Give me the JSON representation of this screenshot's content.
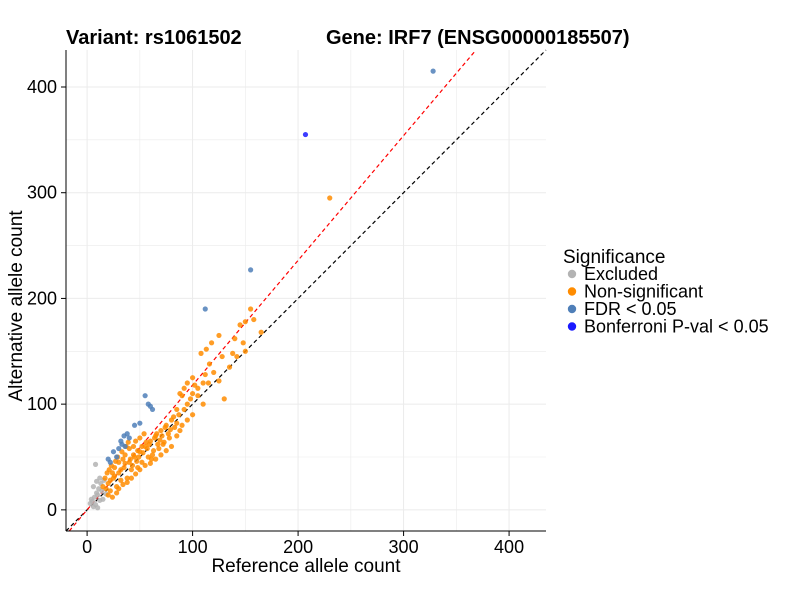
{
  "colors": {
    "excluded": "#b3b3b3",
    "non_significant": "#ff8c00",
    "fdr": "#4f7fb8",
    "bonferroni": "#1a1aff",
    "identity_line": "#000000",
    "fit_line": "#ff0000",
    "grid": "#ebebeb"
  },
  "chart_data": {
    "type": "scatter",
    "title_left": "Variant: rs1061502",
    "title_right": "Gene: IRF7 (ENSG00000185507)",
    "xlabel": "Reference allele count",
    "ylabel": "Alternative allele count",
    "xlim": [
      -20,
      435
    ],
    "ylim": [
      -20,
      435
    ],
    "x_ticks": [
      0,
      100,
      200,
      300,
      400
    ],
    "y_ticks": [
      0,
      100,
      200,
      300,
      400
    ],
    "legend": {
      "title": "Significance",
      "position": "right",
      "entries": [
        {
          "label": "Excluded",
          "key": "excluded"
        },
        {
          "label": "Non-significant",
          "key": "non_significant"
        },
        {
          "label": "FDR < 0.05",
          "key": "fdr"
        },
        {
          "label": "Bonferroni P-val < 0.05",
          "key": "bonferroni"
        }
      ]
    },
    "reference_lines": [
      {
        "name": "identity",
        "slope": 1.0,
        "intercept": 0,
        "color_key": "identity_line",
        "style": "dashed"
      },
      {
        "name": "fit",
        "slope": 1.18,
        "intercept": 0,
        "color_key": "fit_line",
        "style": "dashed"
      }
    ],
    "series": [
      {
        "name": "Excluded",
        "color_key": "excluded",
        "points": [
          [
            5,
            8
          ],
          [
            7,
            12
          ],
          [
            8,
            5
          ],
          [
            10,
            14
          ],
          [
            12,
            9
          ],
          [
            3,
            6
          ],
          [
            6,
            3
          ],
          [
            9,
            16
          ],
          [
            11,
            20
          ],
          [
            4,
            10
          ],
          [
            14,
            18
          ],
          [
            15,
            10
          ],
          [
            10,
            2
          ],
          [
            8,
            43
          ],
          [
            6,
            22
          ],
          [
            13,
            25
          ],
          [
            16,
            28
          ],
          [
            12,
            30
          ],
          [
            9,
            27
          ],
          [
            18,
            15
          ]
        ]
      },
      {
        "name": "Non-significant",
        "color_key": "non_significant",
        "points": [
          [
            20,
            25
          ],
          [
            22,
            18
          ],
          [
            25,
            30
          ],
          [
            28,
            22
          ],
          [
            30,
            35
          ],
          [
            32,
            28
          ],
          [
            35,
            40
          ],
          [
            38,
            30
          ],
          [
            40,
            45
          ],
          [
            42,
            38
          ],
          [
            45,
            50
          ],
          [
            48,
            40
          ],
          [
            50,
            55
          ],
          [
            52,
            45
          ],
          [
            55,
            60
          ],
          [
            58,
            50
          ],
          [
            60,
            65
          ],
          [
            62,
            52
          ],
          [
            65,
            70
          ],
          [
            68,
            58
          ],
          [
            70,
            75
          ],
          [
            72,
            62
          ],
          [
            75,
            80
          ],
          [
            78,
            68
          ],
          [
            80,
            85
          ],
          [
            24,
            35
          ],
          [
            26,
            40
          ],
          [
            30,
            45
          ],
          [
            34,
            48
          ],
          [
            36,
            52
          ],
          [
            40,
            58
          ],
          [
            44,
            60
          ],
          [
            46,
            65
          ],
          [
            50,
            68
          ],
          [
            54,
            72
          ],
          [
            18,
            20
          ],
          [
            20,
            14
          ],
          [
            24,
            12
          ],
          [
            28,
            16
          ],
          [
            30,
            20
          ],
          [
            34,
            24
          ],
          [
            38,
            26
          ],
          [
            42,
            30
          ],
          [
            46,
            34
          ],
          [
            50,
            38
          ],
          [
            55,
            42
          ],
          [
            60,
            44
          ],
          [
            65,
            48
          ],
          [
            70,
            52
          ],
          [
            75,
            56
          ],
          [
            80,
            60
          ],
          [
            85,
            70
          ],
          [
            88,
            75
          ],
          [
            90,
            80
          ],
          [
            95,
            85
          ],
          [
            22,
            28
          ],
          [
            26,
            32
          ],
          [
            32,
            38
          ],
          [
            36,
            44
          ],
          [
            44,
            52
          ],
          [
            48,
            56
          ],
          [
            52,
            60
          ],
          [
            56,
            64
          ],
          [
            64,
            68
          ],
          [
            66,
            72
          ],
          [
            74,
            78
          ],
          [
            82,
            88
          ],
          [
            15,
            22
          ],
          [
            17,
            30
          ],
          [
            19,
            35
          ],
          [
            21,
            38
          ],
          [
            23,
            42
          ],
          [
            27,
            46
          ],
          [
            29,
            50
          ],
          [
            33,
            55
          ],
          [
            37,
            60
          ],
          [
            39,
            64
          ],
          [
            41,
            48
          ],
          [
            43,
            42
          ],
          [
            47,
            46
          ],
          [
            49,
            50
          ],
          [
            53,
            54
          ],
          [
            57,
            58
          ],
          [
            59,
            62
          ],
          [
            61,
            48
          ],
          [
            63,
            56
          ],
          [
            67,
            62
          ],
          [
            69,
            66
          ],
          [
            71,
            70
          ],
          [
            73,
            64
          ],
          [
            77,
            72
          ],
          [
            79,
            76
          ],
          [
            83,
            78
          ],
          [
            85,
            82
          ],
          [
            87,
            90
          ],
          [
            92,
            95
          ],
          [
            95,
            100
          ],
          [
            98,
            105
          ],
          [
            100,
            110
          ],
          [
            105,
            115
          ],
          [
            110,
            120
          ],
          [
            85,
            95
          ],
          [
            90,
            108
          ],
          [
            100,
            125
          ],
          [
            108,
            148
          ],
          [
            113,
            152
          ],
          [
            118,
            158
          ],
          [
            125,
            165
          ],
          [
            128,
            145
          ],
          [
            140,
            162
          ],
          [
            142,
            145
          ],
          [
            145,
            175
          ],
          [
            150,
            178
          ],
          [
            155,
            190
          ],
          [
            158,
            180
          ],
          [
            165,
            168
          ],
          [
            135,
            135
          ],
          [
            120,
            130
          ],
          [
            115,
            120
          ],
          [
            110,
            100
          ],
          [
            105,
            108
          ],
          [
            130,
            105
          ],
          [
            125,
            122
          ],
          [
            138,
            148
          ],
          [
            100,
            90
          ],
          [
            95,
            120
          ],
          [
            88,
            110
          ],
          [
            92,
            115
          ],
          [
            102,
            118
          ],
          [
            112,
            128
          ],
          [
            116,
            138
          ],
          [
            148,
            158
          ],
          [
            150,
            150
          ],
          [
            230,
            295
          ]
        ]
      },
      {
        "name": "FDR < 0.05",
        "color_key": "fdr",
        "points": [
          [
            55,
            108
          ],
          [
            58,
            100
          ],
          [
            60,
            98
          ],
          [
            62,
            95
          ],
          [
            35,
            70
          ],
          [
            38,
            72
          ],
          [
            40,
            68
          ],
          [
            33,
            62
          ],
          [
            30,
            58
          ],
          [
            25,
            55
          ],
          [
            28,
            50
          ],
          [
            22,
            45
          ],
          [
            20,
            48
          ],
          [
            45,
            80
          ],
          [
            50,
            82
          ],
          [
            32,
            65
          ],
          [
            36,
            60
          ],
          [
            112,
            190
          ],
          [
            155,
            227
          ],
          [
            328,
            415
          ]
        ]
      },
      {
        "name": "Bonferroni P-val < 0.05",
        "color_key": "bonferroni",
        "points": [
          [
            207,
            355
          ]
        ]
      }
    ]
  }
}
